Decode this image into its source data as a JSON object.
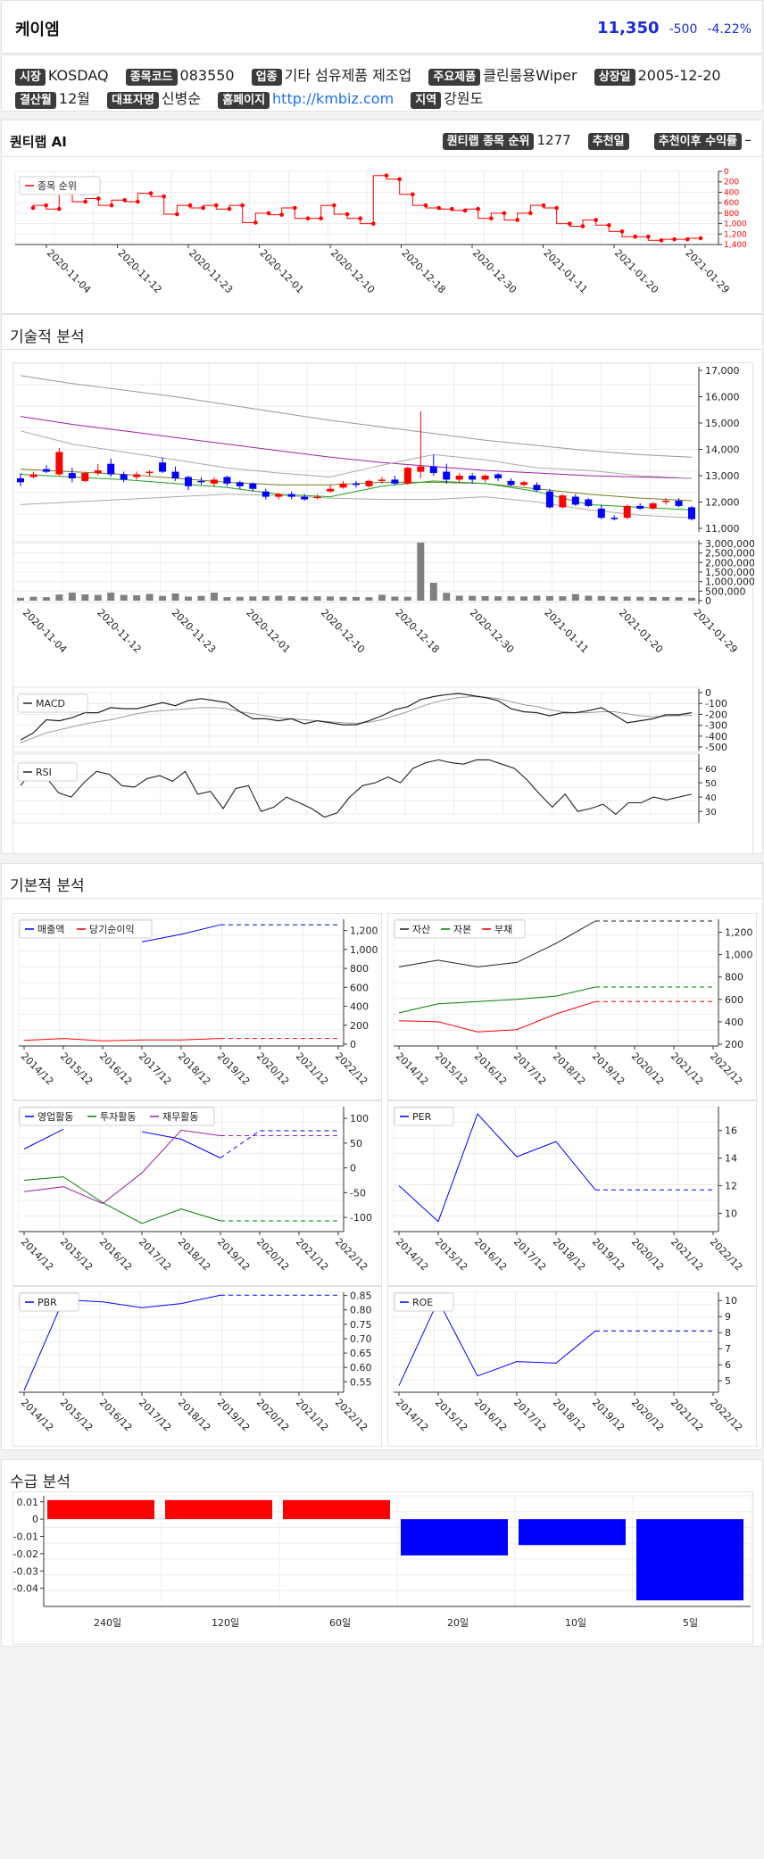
{
  "header": {
    "name": "케이엠",
    "price": "11,350",
    "change": "-500",
    "change_pct": "-4.22%",
    "price_color": "#1a2bd8"
  },
  "info": {
    "market_label": "시장",
    "market": "KOSDAQ",
    "code_label": "종목코드",
    "code": "083550",
    "sector_label": "업종",
    "sector": "기타 섬유제품 제조업",
    "product_label": "주요제품",
    "product": "클린룸용Wiper",
    "listing_label": "상장일",
    "listing": "2005-12-20",
    "fiscal_label": "결산월",
    "fiscal": "12월",
    "ceo_label": "대표자명",
    "ceo": "신병순",
    "homepage_label": "홈페이지",
    "homepage": "http://kmbiz.com",
    "region_label": "지역",
    "region": "강원도"
  },
  "ai": {
    "title": "퀀티랩 AI",
    "rank_label": "퀀티랩 종목 순위",
    "rank": "1277",
    "rec_date_label": "추천일",
    "rec_return_label": "추천이후 수익률",
    "rec_return": "–"
  },
  "sections": {
    "technical": "기술적 분석",
    "fundamental": "기본적 분석",
    "supply": "수급 분석"
  },
  "colors": {
    "up": "#ff0000",
    "down": "#0000ff",
    "rank": "#ff0000",
    "ma_gray": "#999999",
    "ma_purple": "#a020a0",
    "ma_olive": "#7a7a20",
    "ma_green": "#20a020",
    "volume": "#808080"
  },
  "chart_data": [
    {
      "id": "rank",
      "type": "line",
      "legend": [
        "종목 순위"
      ],
      "x_ticks": [
        "2020-11-04",
        "2020-11-12",
        "2020-11-23",
        "2020-12-01",
        "2020-12-10",
        "2020-12-18",
        "2020-12-30",
        "2021-01-11",
        "2021-01-20",
        "2021-01-29"
      ],
      "y_ticks": [
        "0",
        "200",
        "400",
        "600",
        "800",
        "1,000",
        "1,200",
        "1,400"
      ],
      "ylim": [
        0,
        1400
      ],
      "y_reversed": true,
      "values": [
        700,
        650,
        720,
        400,
        580,
        520,
        650,
        550,
        580,
        420,
        480,
        820,
        650,
        700,
        650,
        720,
        650,
        980,
        800,
        830,
        700,
        900,
        900,
        650,
        820,
        900,
        1000,
        80,
        150,
        440,
        650,
        700,
        720,
        750,
        720,
        900,
        800,
        930,
        800,
        650,
        700,
        1000,
        1050,
        930,
        1030,
        1150,
        1250,
        1250,
        1320,
        1300,
        1300,
        1280
      ]
    },
    {
      "id": "price",
      "type": "candlestick",
      "y_ticks": [
        "17,000",
        "16,000",
        "15,000",
        "14,000",
        "13,000",
        "12,000",
        "11,000"
      ],
      "ylim": [
        11000,
        17000
      ],
      "candles": [
        [
          12900,
          13100,
          12750,
          12600
        ],
        [
          12950,
          13150,
          13050,
          12900
        ],
        [
          13250,
          13400,
          13150,
          13100
        ],
        [
          13050,
          14050,
          13900,
          13000
        ],
        [
          13100,
          13300,
          12900,
          12750
        ],
        [
          12800,
          13150,
          13100,
          12750
        ],
        [
          13100,
          13450,
          13200,
          13000
        ],
        [
          13450,
          13650,
          13050,
          12950
        ],
        [
          13050,
          13150,
          12850,
          12750
        ],
        [
          12950,
          13150,
          13050,
          12850
        ],
        [
          13100,
          13200,
          13150,
          13000
        ],
        [
          13500,
          13700,
          13150,
          13100
        ],
        [
          13150,
          13350,
          12900,
          12800
        ],
        [
          12950,
          13000,
          12600,
          12450
        ],
        [
          12800,
          12950,
          12750,
          12650
        ],
        [
          12700,
          12950,
          12850,
          12600
        ],
        [
          12950,
          13000,
          12700,
          12600
        ],
        [
          12750,
          12800,
          12600,
          12500
        ],
        [
          12700,
          12750,
          12500,
          12400
        ],
        [
          12400,
          12500,
          12200,
          12100
        ],
        [
          12200,
          12350,
          12300,
          12100
        ],
        [
          12300,
          12400,
          12200,
          12100
        ],
        [
          12200,
          12300,
          12100,
          12050
        ],
        [
          12150,
          12300,
          12200,
          12100
        ],
        [
          12400,
          12650,
          12500,
          12350
        ],
        [
          12550,
          12800,
          12700,
          12500
        ],
        [
          12700,
          12800,
          12650,
          12550
        ],
        [
          12600,
          12850,
          12800,
          12550
        ],
        [
          12800,
          12950,
          12850,
          12700
        ],
        [
          12850,
          13000,
          12700,
          12650
        ],
        [
          12700,
          13350,
          13300,
          12650
        ],
        [
          13150,
          15450,
          13350,
          12900
        ],
        [
          13350,
          13800,
          13100,
          13000
        ],
        [
          13150,
          13450,
          12850,
          12700
        ],
        [
          12850,
          13100,
          13000,
          12750
        ],
        [
          13000,
          13100,
          12850,
          12700
        ],
        [
          12850,
          13050,
          13000,
          12750
        ],
        [
          13050,
          13100,
          12900,
          12800
        ],
        [
          12800,
          12900,
          12650,
          12600
        ],
        [
          12650,
          12800,
          12750,
          12600
        ],
        [
          12650,
          12750,
          12450,
          12400
        ],
        [
          12400,
          12500,
          11800,
          11750
        ],
        [
          11800,
          12300,
          12250,
          11750
        ],
        [
          12200,
          12300,
          11900,
          11850
        ],
        [
          12100,
          12150,
          11850,
          11800
        ],
        [
          11750,
          11900,
          11400,
          11350
        ],
        [
          11400,
          11500,
          11350,
          11300
        ],
        [
          11400,
          11900,
          11850,
          11350
        ],
        [
          11850,
          11950,
          11750,
          11700
        ],
        [
          11750,
          12000,
          11950,
          11700
        ],
        [
          12000,
          12150,
          12050,
          11900
        ],
        [
          12050,
          12150,
          11850,
          11800
        ],
        [
          11800,
          11850,
          11350,
          11300
        ]
      ],
      "ma_lines": {
        "gray_outer_upper": [
          16800,
          16500,
          16250,
          16000,
          15700,
          15400,
          15100,
          14850,
          14600,
          14350,
          14150,
          13950,
          13800,
          13700
        ],
        "purple": [
          15250,
          14950,
          14700,
          14450,
          14200,
          13950,
          13700,
          13500,
          13350,
          13200,
          13100,
          13000,
          12950,
          12900
        ],
        "olive": [
          13250,
          13150,
          13050,
          12900,
          12750,
          12650,
          12650,
          12750,
          12750,
          12700,
          12500,
          12300,
          12150,
          12050
        ],
        "green": [
          13050,
          12950,
          12850,
          12700,
          12550,
          12300,
          12200,
          12600,
          12800,
          12700,
          12400,
          11900,
          11800,
          11700
        ],
        "upper_band": [
          14700,
          14200,
          13900,
          13600,
          13300,
          13100,
          12950,
          13400,
          13800,
          13600,
          13300,
          13200,
          13000,
          12900
        ],
        "lower_band": [
          11900,
          12000,
          12100,
          12200,
          12300,
          12250,
          12150,
          12100,
          12100,
          12200,
          12000,
          11700,
          11500,
          11400
        ]
      }
    },
    {
      "id": "volume",
      "type": "bar",
      "y_ticks": [
        "3,000,000",
        "2,500,000",
        "2,000,000",
        "1,500,000",
        "1,000,000",
        "500,000",
        "0"
      ],
      "ylim": [
        0,
        3000000
      ],
      "x_ticks": [
        "2020-11-04",
        "2020-11-12",
        "2020-11-23",
        "2020-12-01",
        "2020-12-10",
        "2020-12-18",
        "2020-12-30",
        "2021-01-11",
        "2021-01-20",
        "2021-01-29"
      ],
      "values": [
        150000,
        200000,
        180000,
        320000,
        420000,
        330000,
        300000,
        420000,
        300000,
        280000,
        350000,
        250000,
        380000,
        210000,
        250000,
        420000,
        180000,
        200000,
        220000,
        240000,
        260000,
        230000,
        200000,
        230000,
        220000,
        200000,
        190000,
        180000,
        310000,
        210000,
        200000,
        3050000,
        940000,
        410000,
        260000,
        250000,
        240000,
        230000,
        230000,
        220000,
        260000,
        240000,
        230000,
        340000,
        260000,
        240000,
        210000,
        210000,
        200000,
        190000,
        190000,
        180000,
        150000
      ]
    },
    {
      "id": "macd",
      "type": "line",
      "legend": [
        "MACD"
      ],
      "y_ticks": [
        "0",
        "-100",
        "-200",
        "-300",
        "-400",
        "-500"
      ],
      "ylim": [
        -520,
        20
      ],
      "macd": [
        -450,
        -380,
        -250,
        -260,
        -230,
        -180,
        -180,
        -130,
        -140,
        -140,
        -110,
        -80,
        -110,
        -60,
        -40,
        -60,
        -80,
        -170,
        -240,
        -240,
        -260,
        -240,
        -290,
        -260,
        -280,
        -300,
        -300,
        -260,
        -210,
        -150,
        -120,
        -50,
        -20,
        0,
        10,
        -10,
        -30,
        -60,
        -140,
        -170,
        -180,
        -210,
        -180,
        -180,
        -160,
        -130,
        -200,
        -280,
        -260,
        -240,
        -200,
        -200,
        -180
      ],
      "signal": [
        -480,
        -430,
        -380,
        -350,
        -320,
        -290,
        -270,
        -250,
        -220,
        -190,
        -170,
        -160,
        -150,
        -140,
        -130,
        -130,
        -140,
        -170,
        -190,
        -210,
        -230,
        -240,
        -250,
        -260,
        -270,
        -280,
        -285,
        -275,
        -250,
        -210,
        -170,
        -120,
        -80,
        -50,
        -30,
        -20,
        -25,
        -40,
        -70,
        -100,
        -120,
        -150,
        -170,
        -180,
        -180,
        -170,
        -170,
        -190,
        -210,
        -220,
        -215,
        -210,
        -205
      ]
    },
    {
      "id": "rsi",
      "type": "line",
      "legend": [
        "RSI"
      ],
      "y_ticks": [
        "60",
        "50",
        "40",
        "30"
      ],
      "ylim": [
        22,
        70
      ],
      "values": [
        48,
        59,
        54,
        43,
        40,
        50,
        58,
        56,
        48,
        47,
        53,
        55,
        51,
        58,
        42,
        44,
        32,
        46,
        48,
        30,
        33,
        40,
        36,
        32,
        26,
        29,
        40,
        48,
        50,
        54,
        50,
        60,
        64,
        66,
        64,
        63,
        66,
        66,
        63,
        60,
        52,
        42,
        33,
        42,
        30,
        32,
        35,
        28,
        36,
        36,
        40,
        38,
        40,
        42
      ]
    },
    {
      "id": "revenue",
      "type": "line",
      "legend": [
        "매출액",
        "당기순이익"
      ],
      "x_ticks": [
        "2014/12",
        "2015/12",
        "2016/12",
        "2017/12",
        "2018/12",
        "2019/12",
        "2020/12",
        "2021/12",
        "2022/12"
      ],
      "y_ticks": [
        "1,200",
        "1,000",
        "800",
        "600",
        "400",
        "200",
        "0"
      ],
      "ylim": [
        0,
        1300
      ],
      "series": [
        {
          "name": "매출액",
          "values": [
            null,
            null,
            null,
            1080,
            1160,
            1260,
            1260,
            1260,
            1260
          ]
        },
        {
          "name": "당기순이익",
          "values": [
            40,
            60,
            35,
            45,
            45,
            60,
            60,
            60,
            60
          ]
        }
      ]
    },
    {
      "id": "balance",
      "type": "line",
      "legend": [
        "자산",
        "자본",
        "부채"
      ],
      "x_ticks": [
        "2014/12",
        "2015/12",
        "2016/12",
        "2017/12",
        "2018/12",
        "2019/12",
        "2020/12",
        "2021/12",
        "2022/12"
      ],
      "y_ticks": [
        "1,200",
        "1,000",
        "800",
        "600",
        "400",
        "200"
      ],
      "ylim": [
        200,
        1300
      ],
      "series": [
        {
          "name": "자산",
          "values": [
            890,
            950,
            890,
            930,
            1100,
            1300,
            1300,
            1300,
            1300
          ]
        },
        {
          "name": "자본",
          "values": [
            480,
            560,
            580,
            600,
            630,
            710,
            710,
            710,
            710
          ]
        },
        {
          "name": "부채",
          "values": [
            410,
            400,
            310,
            330,
            470,
            580,
            580,
            580,
            580
          ]
        }
      ]
    },
    {
      "id": "cashflow",
      "type": "line",
      "legend": [
        "영업활동",
        "투자활동",
        "재무활동"
      ],
      "x_ticks": [
        "2014/12",
        "2015/12",
        "2016/12",
        "2017/12",
        "2018/12",
        "2019/12",
        "2020/12",
        "2021/12",
        "2022/12"
      ],
      "y_ticks": [
        "100",
        "50",
        "0",
        "-50",
        "-100"
      ],
      "ylim": [
        -125,
        120
      ],
      "series": [
        {
          "name": "영업활동",
          "values": [
            38,
            78,
            null,
            73,
            58,
            20,
            75,
            75,
            75
          ]
        },
        {
          "name": "투자활동",
          "values": [
            -25,
            -18,
            -70,
            -112,
            -83,
            -107,
            -107,
            -107,
            -107
          ]
        },
        {
          "name": "재무활동",
          "values": [
            -48,
            -38,
            -72,
            -10,
            76,
            65,
            65,
            65,
            65
          ]
        }
      ]
    },
    {
      "id": "per",
      "type": "line",
      "legend": [
        "PER"
      ],
      "x_ticks": [
        "2014/12",
        "2015/12",
        "2016/12",
        "2017/12",
        "2018/12",
        "2019/12",
        "2020/12",
        "2021/12",
        "2022/12"
      ],
      "y_ticks": [
        "16",
        "14",
        "12",
        "10"
      ],
      "ylim": [
        8.8,
        17.6
      ],
      "series": [
        {
          "name": "PER",
          "values": [
            12.0,
            9.4,
            17.2,
            14.1,
            15.2,
            11.7,
            11.7,
            11.7,
            11.7
          ]
        }
      ]
    },
    {
      "id": "pbr",
      "type": "line",
      "legend": [
        "PBR"
      ],
      "x_ticks": [
        "2014/12",
        "2015/12",
        "2016/12",
        "2017/12",
        "2018/12",
        "2019/12",
        "2020/12",
        "2021/12",
        "2022/12"
      ],
      "y_ticks": [
        "0.85",
        "0.80",
        "0.75",
        "0.70",
        "0.65",
        "0.60",
        "0.55"
      ],
      "ylim": [
        0.52,
        0.855
      ],
      "series": [
        {
          "name": "PBR",
          "values": [
            0.52,
            0.835,
            0.828,
            0.808,
            0.822,
            0.851,
            0.851,
            0.851,
            0.851
          ]
        }
      ]
    },
    {
      "id": "roe",
      "type": "line",
      "legend": [
        "ROE"
      ],
      "x_ticks": [
        "2014/12",
        "2015/12",
        "2016/12",
        "2017/12",
        "2018/12",
        "2019/12",
        "2020/12",
        "2021/12",
        "2022/12"
      ],
      "y_ticks": [
        "10",
        "9",
        "8",
        "7",
        "6",
        "5"
      ],
      "ylim": [
        4.4,
        10.4
      ],
      "series": [
        {
          "name": "ROE",
          "values": [
            4.7,
            10.0,
            5.3,
            6.2,
            6.1,
            8.1,
            8.1,
            8.1,
            8.1
          ]
        }
      ]
    },
    {
      "id": "supply",
      "type": "bar",
      "categories": [
        "240일",
        "120일",
        "60일",
        "20일",
        "10일",
        "5일"
      ],
      "values": [
        0.011,
        0.011,
        0.011,
        -0.021,
        -0.015,
        -0.047
      ],
      "colors": [
        "#ff0000",
        "#ff0000",
        "#ff0000",
        "#0000ff",
        "#0000ff",
        "#0000ff"
      ],
      "y_ticks": [
        "0.01",
        "0",
        "-0.01",
        "-0.02",
        "-0.03",
        "-0.04"
      ],
      "ylim": [
        -0.0505,
        0.0135
      ]
    }
  ]
}
